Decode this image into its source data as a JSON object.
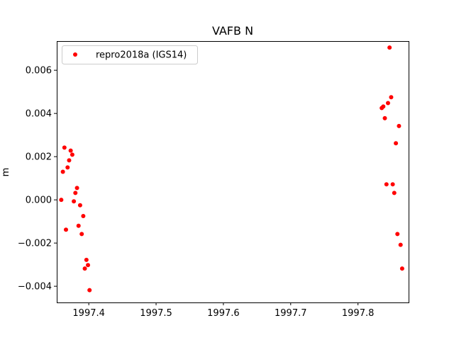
{
  "chart_data": {
    "type": "scatter",
    "title": "VAFB N",
    "xlabel": "",
    "ylabel": "m",
    "xlim": [
      1997.3524,
      1997.8752
    ],
    "ylim": [
      -0.00475,
      0.00735
    ],
    "xticks": [
      1997.4,
      1997.5,
      1997.6,
      1997.7,
      1997.8
    ],
    "xtick_labels": [
      "1997.4",
      "1997.5",
      "1997.6",
      "1997.7",
      "1997.8"
    ],
    "yticks": [
      -0.004,
      -0.002,
      0.0,
      0.002,
      0.004,
      0.006
    ],
    "ytick_labels": [
      "−0.004",
      "−0.002",
      "0.000",
      "0.002",
      "0.004",
      "0.006"
    ],
    "grid": false,
    "legend": {
      "placement": "top-left"
    },
    "series": [
      {
        "name": "repro2018a (IGS14)",
        "color": "#ff0000",
        "marker": "circle",
        "points": [
          [
            1997.3591,
            0.0
          ],
          [
            1997.3615,
            0.0013
          ],
          [
            1997.3638,
            0.00242
          ],
          [
            1997.3661,
            -0.00138
          ],
          [
            1997.3685,
            0.0015
          ],
          [
            1997.3708,
            0.00183
          ],
          [
            1997.3731,
            0.00228
          ],
          [
            1997.3755,
            0.00209
          ],
          [
            1997.3778,
            -7e-05
          ],
          [
            1997.3801,
            0.00032
          ],
          [
            1997.3825,
            0.00055
          ],
          [
            1997.3848,
            -0.0012
          ],
          [
            1997.3871,
            -0.00025
          ],
          [
            1997.3895,
            -0.00158
          ],
          [
            1997.3918,
            -0.00075
          ],
          [
            1997.3941,
            -0.00318
          ],
          [
            1997.3965,
            -0.00278
          ],
          [
            1997.3988,
            -0.00302
          ],
          [
            1997.4011,
            -0.00418
          ],
          [
            1997.8353,
            0.00425
          ],
          [
            1997.8376,
            0.00432
          ],
          [
            1997.8399,
            0.00378
          ],
          [
            1997.8423,
            0.00072
          ],
          [
            1997.8446,
            0.00448
          ],
          [
            1997.8469,
            0.00705
          ],
          [
            1997.8493,
            0.00475
          ],
          [
            1997.8516,
            0.00072
          ],
          [
            1997.8539,
            0.00032
          ],
          [
            1997.8563,
            0.00262
          ],
          [
            1997.8586,
            -0.00158
          ],
          [
            1997.8609,
            0.00342
          ],
          [
            1997.8633,
            -0.00208
          ],
          [
            1997.8656,
            -0.00318
          ]
        ]
      }
    ]
  }
}
